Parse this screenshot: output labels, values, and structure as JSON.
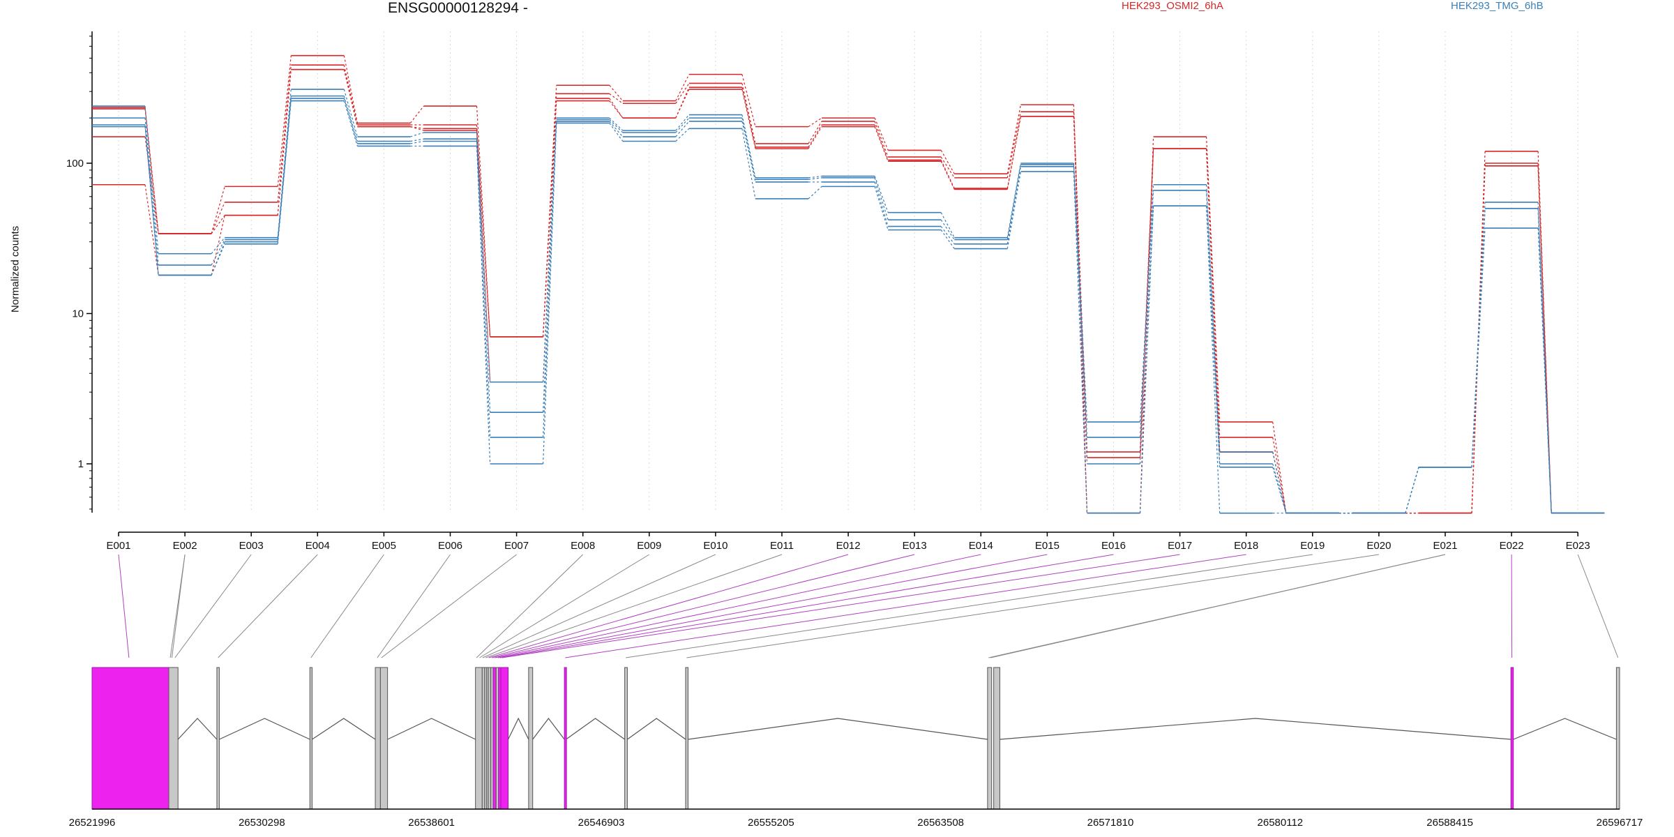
{
  "chart_data": {
    "type": "line",
    "title": "ENSG00000128294 -",
    "ylabel": "Normalized counts",
    "yscale": "log",
    "ylim": [
      0.45,
      700
    ],
    "yticks": [
      1,
      10,
      100
    ],
    "ytick_labels": [
      "1",
      "10",
      "100"
    ],
    "grid": "vertical dotted at exon centers",
    "legend_position": "top",
    "categories": [
      "E001",
      "E002",
      "E003",
      "E004",
      "E005",
      "E006",
      "E007",
      "E008",
      "E009",
      "E010",
      "E011",
      "E012",
      "E013",
      "E014",
      "E015",
      "E016",
      "E017",
      "E018",
      "E019",
      "E020",
      "E021",
      "E022",
      "E023"
    ],
    "series": [
      {
        "name": "HEK293_OSMI2_6hA",
        "color": "#d62728",
        "replicates": [
          [
            235,
            34,
            70,
            520,
            185,
            240,
            7.0,
            330,
            260,
            390,
            175,
            200,
            122,
            85,
            245,
            0.47,
            150,
            1.9,
            0.47,
            0.47,
            0.47,
            120,
            0.47
          ],
          [
            230,
            34,
            55,
            450,
            180,
            180,
            7.0,
            290,
            250,
            340,
            135,
            190,
            110,
            80,
            220,
            1.2,
            125,
            1.5,
            0.47,
            0.47,
            0.47,
            100,
            0.47
          ],
          [
            150,
            34,
            45,
            420,
            175,
            170,
            7.0,
            270,
            200,
            320,
            128,
            180,
            105,
            68,
            205,
            1.1,
            125,
            1.2,
            0.47,
            0.47,
            0.47,
            96,
            0.47
          ],
          [
            72,
            18,
            45,
            420,
            175,
            165,
            3.5,
            260,
            200,
            310,
            125,
            175,
            103,
            67,
            205,
            0.47,
            125,
            1.2,
            0.47,
            0.47,
            0.47,
            96,
            0.47
          ]
        ]
      },
      {
        "name": "HEK293_TMG_6hB",
        "color": "#3a7fb8",
        "replicates": [
          [
            240,
            25,
            32,
            310,
            150,
            160,
            3.5,
            200,
            165,
            210,
            80,
            82,
            47,
            32,
            100,
            1.9,
            72,
            1.2,
            0.47,
            0.47,
            0.95,
            55,
            0.47
          ],
          [
            200,
            21,
            31,
            280,
            140,
            145,
            2.2,
            195,
            160,
            200,
            78,
            80,
            42,
            31,
            98,
            1.5,
            66,
            1.0,
            0.47,
            0.47,
            0.95,
            50,
            0.47
          ],
          [
            180,
            18,
            30,
            270,
            135,
            140,
            1.5,
            190,
            150,
            190,
            75,
            75,
            38,
            29,
            95,
            1.0,
            52,
            0.95,
            0.47,
            0.47,
            0.95,
            50,
            0.47
          ],
          [
            175,
            18,
            29,
            260,
            130,
            130,
            1.0,
            185,
            140,
            170,
            58,
            70,
            36,
            27,
            88,
            0.47,
            52,
            0.47,
            0.47,
            0.47,
            0.95,
            37,
            0.47
          ]
        ]
      }
    ],
    "gene_model": {
      "genomic_ticks": [
        "26521996",
        "26530298",
        "26538601",
        "26546903",
        "26555205",
        "26563508",
        "26571810",
        "26580112",
        "26588415",
        "26596717"
      ],
      "range": [
        26521996,
        26596717
      ],
      "significant_color": "#ee22ee",
      "intron_color": "#555555",
      "exons": [
        {
          "id": "E001",
          "start": 26521996,
          "end": 26525750,
          "significant": true
        },
        {
          "id": "E002",
          "start": 26525750,
          "end": 26526200,
          "significant": false
        },
        {
          "id": "E003",
          "start": 26528100,
          "end": 26528220,
          "significant": false
        },
        {
          "id": "E004",
          "start": 26532650,
          "end": 26532760,
          "significant": false
        },
        {
          "id": "E005",
          "start": 26535850,
          "end": 26536100,
          "significant": false
        },
        {
          "id": "E006",
          "start": 26536100,
          "end": 26536450,
          "significant": false
        },
        {
          "id": "E007",
          "start": 26540750,
          "end": 26541080,
          "significant": false
        },
        {
          "id": "E008",
          "start": 26541080,
          "end": 26541200,
          "significant": false
        },
        {
          "id": "E009",
          "start": 26541200,
          "end": 26541300,
          "significant": false
        },
        {
          "id": "E010",
          "start": 26541300,
          "end": 26541380,
          "significant": false
        },
        {
          "id": "E011",
          "start": 26541380,
          "end": 26541500,
          "significant": false
        },
        {
          "id": "E012",
          "start": 26541500,
          "end": 26541620,
          "significant": false
        },
        {
          "id": "E013",
          "start": 26541620,
          "end": 26541760,
          "significant": true
        },
        {
          "id": "E014",
          "start": 26541760,
          "end": 26541880,
          "significant": false
        },
        {
          "id": "E015",
          "start": 26541880,
          "end": 26541990,
          "significant": true
        },
        {
          "id": "E016",
          "start": 26541990,
          "end": 26542350,
          "significant": true
        },
        {
          "id": "E017",
          "start": 26543350,
          "end": 26543550,
          "significant": false
        },
        {
          "id": "E018",
          "start": 26545100,
          "end": 26545180,
          "significant": true
        },
        {
          "id": "E019",
          "start": 26548050,
          "end": 26548180,
          "significant": false
        },
        {
          "id": "E020",
          "start": 26551030,
          "end": 26551150,
          "significant": false
        },
        {
          "id": "E021",
          "start": 26565800,
          "end": 26566000,
          "significant": false
        },
        {
          "id": "E022",
          "start": 26566100,
          "end": 26566400,
          "significant": false
        },
        {
          "id": "E023",
          "start": 26591400,
          "end": 26591520,
          "significant": true
        },
        {
          "id": "E024",
          "start": 26596560,
          "end": 26596717,
          "significant": false
        }
      ],
      "introns": [
        [
          26526200,
          26528100
        ],
        [
          26528220,
          26532650
        ],
        [
          26532760,
          26535850
        ],
        [
          26536450,
          26540750
        ],
        [
          26542350,
          26543350
        ],
        [
          26543550,
          26545100
        ],
        [
          26545180,
          26548050
        ],
        [
          26548180,
          26551030
        ],
        [
          26551150,
          26565800
        ],
        [
          26566400,
          26591400
        ],
        [
          26591520,
          26596560
        ]
      ],
      "connectors": [
        {
          "label": "E001",
          "target": 26523800,
          "significant": true
        },
        {
          "label": "E002",
          "target": 26525820,
          "significant": false
        },
        {
          "label": "E002",
          "target": 26525900,
          "significant": false
        },
        {
          "label": "E003",
          "target": 26526050,
          "significant": false
        },
        {
          "label": "E004",
          "target": 26528160,
          "significant": false
        },
        {
          "label": "E005",
          "target": 26532700,
          "significant": false
        },
        {
          "label": "E006",
          "target": 26535950,
          "significant": false
        },
        {
          "label": "E007",
          "target": 26536150,
          "significant": false
        },
        {
          "label": "E008",
          "target": 26540800,
          "significant": false
        },
        {
          "label": "E009",
          "target": 26540950,
          "significant": false
        },
        {
          "label": "E010",
          "target": 26541100,
          "significant": false
        },
        {
          "label": "E011",
          "target": 26541250,
          "significant": false
        },
        {
          "label": "E012",
          "target": 26541400,
          "significant": true
        },
        {
          "label": "E013",
          "target": 26541550,
          "significant": true
        },
        {
          "label": "E014",
          "target": 26541700,
          "significant": true
        },
        {
          "label": "E015",
          "target": 26541850,
          "significant": true
        },
        {
          "label": "E016",
          "target": 26541950,
          "significant": true
        },
        {
          "label": "E017",
          "target": 26542050,
          "significant": true
        },
        {
          "label": "E018",
          "target": 26545140,
          "significant": true
        },
        {
          "label": "E019",
          "target": 26548100,
          "significant": false
        },
        {
          "label": "E020",
          "target": 26551080,
          "significant": false
        },
        {
          "label": "E021",
          "target": 26565850,
          "significant": false
        },
        {
          "label": "E021",
          "target": 26565950,
          "significant": false
        },
        {
          "label": "E022",
          "target": 26591450,
          "significant": true
        },
        {
          "label": "E023",
          "target": 26596640,
          "significant": false
        }
      ]
    }
  }
}
